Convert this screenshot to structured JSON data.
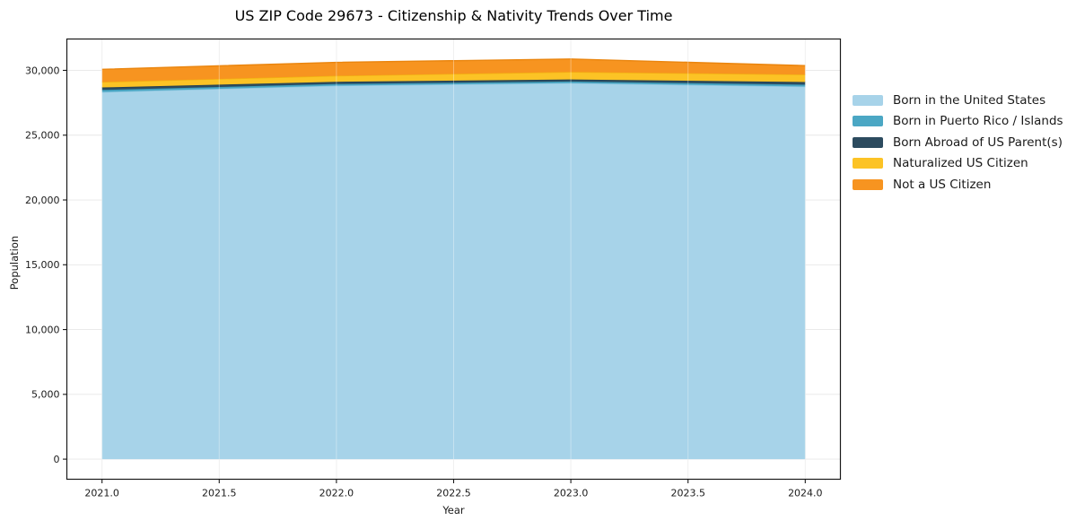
{
  "chart_data": {
    "type": "area",
    "stacked": true,
    "title": "US ZIP Code 29673 - Citizenship & Nativity Trends Over Time",
    "xlabel": "Year",
    "ylabel": "Population",
    "x": [
      2021,
      2022,
      2023,
      2024
    ],
    "series": [
      {
        "name": "Born in the United States",
        "color": "#a7d3e9",
        "edge_color": "#8cc6e0",
        "values": [
          28330,
          28820,
          29020,
          28750
        ]
      },
      {
        "name": "Born in Puerto Rico / Islands",
        "color": "#4ba7c4",
        "edge_color": "#3a97b5",
        "values": [
          160,
          130,
          120,
          150
        ]
      },
      {
        "name": "Born Abroad of US Parent(s)",
        "color": "#2c4b5f",
        "edge_color": "#243f4f",
        "values": [
          190,
          170,
          160,
          200
        ]
      },
      {
        "name": "Naturalized US Citizen",
        "color": "#fcc325",
        "edge_color": "#f2b211",
        "values": [
          420,
          460,
          575,
          575
        ]
      },
      {
        "name": "Not a US Citizen",
        "color": "#f79420",
        "edge_color": "#ea850e",
        "values": [
          980,
          1040,
          1000,
          690
        ]
      }
    ],
    "x_ticks": [
      {
        "v": 2021.0,
        "label": "2021.0"
      },
      {
        "v": 2021.5,
        "label": "2021.5"
      },
      {
        "v": 2022.0,
        "label": "2022.0"
      },
      {
        "v": 2022.5,
        "label": "2022.5"
      },
      {
        "v": 2023.0,
        "label": "2023.0"
      },
      {
        "v": 2023.5,
        "label": "2023.5"
      },
      {
        "v": 2024.0,
        "label": "2024.0"
      }
    ],
    "y_ticks": [
      {
        "v": 0,
        "label": "0"
      },
      {
        "v": 5000,
        "label": "5,000"
      },
      {
        "v": 10000,
        "label": "10,000"
      },
      {
        "v": 15000,
        "label": "15,000"
      },
      {
        "v": 20000,
        "label": "20,000"
      },
      {
        "v": 25000,
        "label": "25,000"
      },
      {
        "v": 30000,
        "label": "30,000"
      }
    ],
    "xlim": [
      2020.85,
      2024.15
    ],
    "ylim": [
      -1550,
      32420
    ],
    "grid": true,
    "grid_color": "#e7e7e7",
    "spine_color": "#1a1a1a",
    "legend_position": "right-outside"
  }
}
